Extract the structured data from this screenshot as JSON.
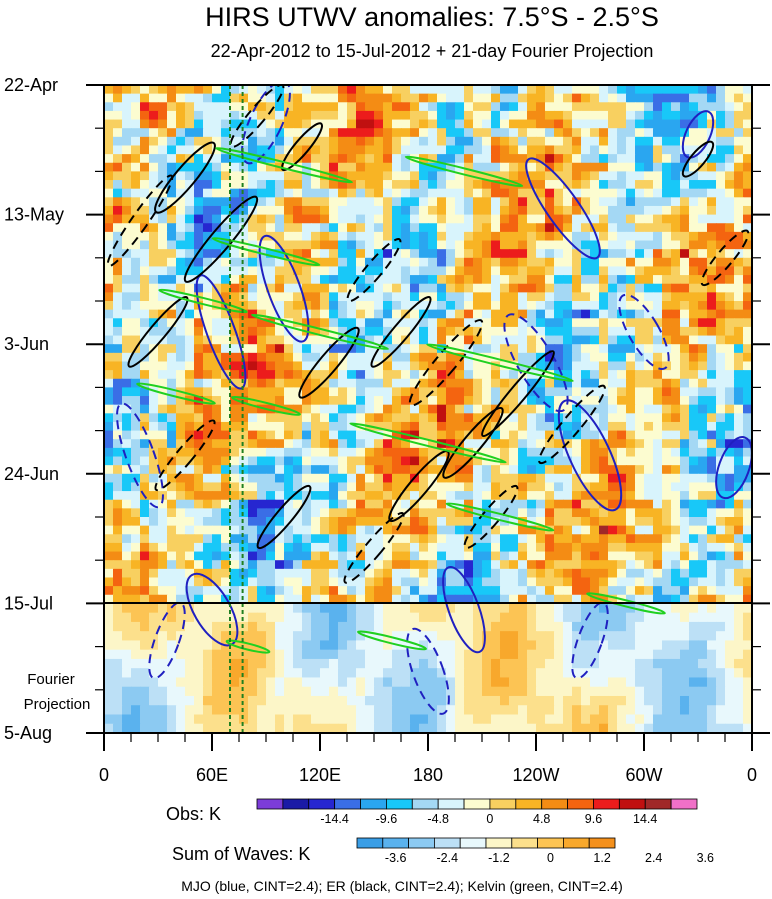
{
  "chart_data": {
    "type": "heatmap",
    "title": "HIRS UTWV anomalies: 7.5°S - 2.5°S",
    "subtitle": "22-Apr-2012 to 15-Jul-2012 + 21-day Fourier Projection",
    "x_axis": {
      "tick_labels": [
        "0",
        "60E",
        "120E",
        "180",
        "120W",
        "60W",
        "0"
      ],
      "tick_values_deg_east": [
        0,
        60,
        120,
        180,
        240,
        300,
        360
      ],
      "range_deg_east": [
        0,
        360
      ]
    },
    "y_axis": {
      "tick_labels": [
        "22-Apr",
        "13-May",
        "3-Jun",
        "24-Jun",
        "15-Jul",
        "5-Aug"
      ],
      "range": [
        "2012-04-22",
        "2012-08-05"
      ],
      "reversed": true,
      "projection_label_lines": [
        "Fourier",
        "Projection"
      ]
    },
    "observation_end": "2012-07-15",
    "reference_longitudes_deg_east": [
      70,
      77
    ],
    "obs_colorbar": {
      "label": "Obs: K",
      "tick_labels": [
        "-14.4",
        "-9.6",
        "-4.8",
        "0",
        "4.8",
        "9.6",
        "14.4"
      ],
      "colors": [
        "#7c3cd8",
        "#1a1aa6",
        "#2626d0",
        "#3a6ee6",
        "#2aa6f0",
        "#18c8f8",
        "#a4d8f4",
        "#d8f4fc",
        "#fcfcd0",
        "#f8d060",
        "#f8b424",
        "#f48c14",
        "#f46410",
        "#ec1c1c",
        "#c01010",
        "#a02828",
        "#f070c8"
      ]
    },
    "waves_colorbar": {
      "label": "Sum of Waves: K",
      "tick_labels": [
        "-3.6",
        "-2.4",
        "-1.2",
        "0",
        "1.2",
        "2.4",
        "3.6"
      ],
      "colors": [
        "#3a9ee6",
        "#5ab2ee",
        "#8ccaf2",
        "#bce0f6",
        "#e8f8fc",
        "#fcf6c8",
        "#fce08c",
        "#fcc454",
        "#f8a82c",
        "#f4901c"
      ]
    },
    "contours": [
      {
        "name": "MJO",
        "color": "#2020c0"
      },
      {
        "name": "ER",
        "color": "#000000"
      },
      {
        "name": "Kelvin",
        "color": "#20d020"
      }
    ],
    "footnote": "MJO (blue, CINT=2.4); ER (black, CINT=2.4); Kelvin (green, CINT=2.4)",
    "colors": {
      "obs_reference_lines": "#208020"
    }
  }
}
